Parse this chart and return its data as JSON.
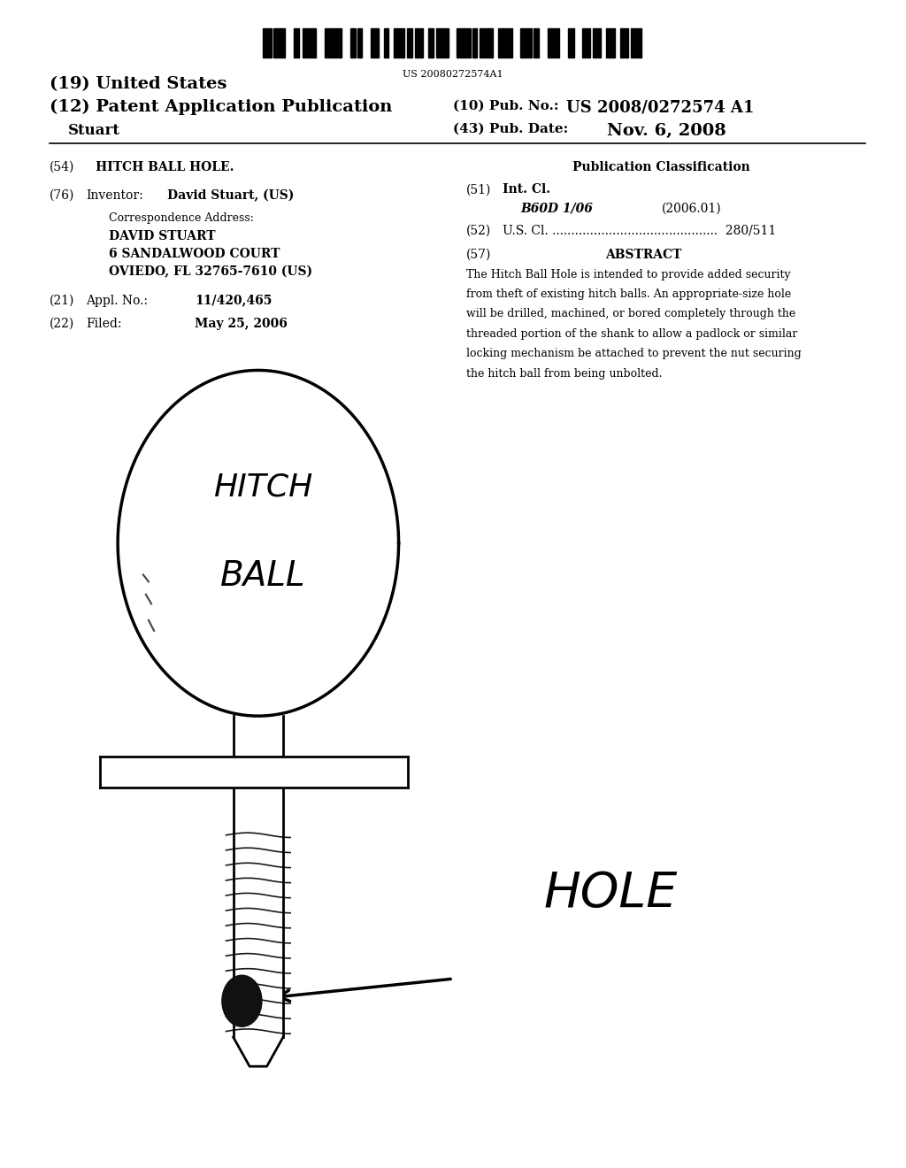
{
  "bg_color": "#ffffff",
  "barcode_text": "US 20080272574A1",
  "title_19": "(19) United States",
  "title_12": "(12) Patent Application Publication",
  "pub_no_label": "(10) Pub. No.:",
  "pub_no_val": "US 2008/0272574 A1",
  "inventor_name": "Stuart",
  "pub_date_label": "(43) Pub. Date:",
  "pub_date_val": "Nov. 6, 2008",
  "field54_label": "(54)",
  "field54_val": "HITCH BALL HOLE.",
  "pub_class_label": "Publication Classification",
  "field51_label": "(51)",
  "int_cl_label": "Int. Cl.",
  "int_cl_code": "B60D 1/06",
  "int_cl_year": "(2006.01)",
  "field52_label": "(52)",
  "us_cl_val": "280/511",
  "field57_label": "(57)",
  "abstract_label": "ABSTRACT",
  "abstract_lines": [
    "The Hitch Ball Hole is intended to provide added security",
    "from theft of existing hitch balls. An appropriate-size hole",
    "will be drilled, machined, or bored completely through the",
    "threaded portion of the shank to allow a padlock or similar",
    "locking mechanism be attached to prevent the nut securing",
    "the hitch ball from being unbolted."
  ],
  "field76_label": "(76)",
  "inventor_label": "Inventor:",
  "inventor_val": "David Stuart, (US)",
  "corr_label": "Correspondence Address:",
  "corr_name": "DAVID STUART",
  "corr_addr1": "6 SANDALWOOD COURT",
  "corr_addr2": "OVIEDO, FL 32765-7610 (US)",
  "field21_label": "(21)",
  "appl_no_label": "Appl. No.:",
  "appl_no_val": "11/420,465",
  "field22_label": "(22)",
  "filed_label": "Filed:",
  "filed_val": "May 25, 2006",
  "hitch_text1": "HITCH",
  "hitch_text2": "BALL",
  "hole_text": "HOLE"
}
